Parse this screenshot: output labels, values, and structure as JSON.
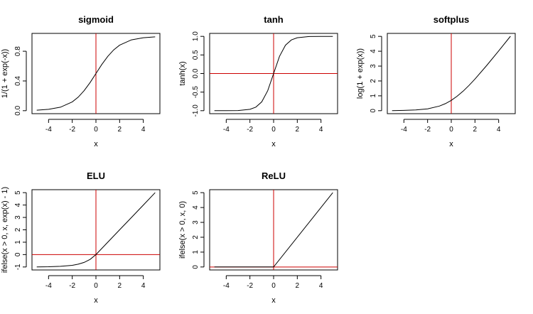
{
  "chart_data": [
    {
      "type": "line",
      "title": "sigmoid",
      "xlabel": "x",
      "ylabel": "1/(1 + exp(-x))",
      "xlim": [
        -5,
        5
      ],
      "ylim": [
        0,
        1
      ],
      "xticks": [
        -4,
        -2,
        0,
        2,
        4
      ],
      "yticks": [
        0.0,
        0.4,
        0.8
      ],
      "ytick_labels": [
        "0.0",
        "0.4",
        "0.8"
      ],
      "grid": false,
      "x": [
        -5,
        -4,
        -3,
        -2,
        -1.5,
        -1,
        -0.5,
        0,
        0.5,
        1,
        1.5,
        2,
        3,
        4,
        5
      ],
      "y": [
        0.007,
        0.018,
        0.047,
        0.119,
        0.182,
        0.269,
        0.378,
        0.5,
        0.622,
        0.731,
        0.818,
        0.881,
        0.953,
        0.982,
        0.993
      ],
      "reference_lines": [
        {
          "orientation": "vertical",
          "value": 0,
          "color": "#cc0000"
        }
      ]
    },
    {
      "type": "line",
      "title": "tanh",
      "xlabel": "x",
      "ylabel": "tanh(x)",
      "xlim": [
        -5,
        5
      ],
      "ylim": [
        -1,
        1
      ],
      "xticks": [
        -4,
        -2,
        0,
        2,
        4
      ],
      "yticks": [
        -1.0,
        -0.5,
        0.0,
        0.5,
        1.0
      ],
      "ytick_labels": [
        "-1.0",
        "-0.5",
        "0.0",
        "0.5",
        "1.0"
      ],
      "grid": false,
      "x": [
        -5,
        -4,
        -3,
        -2,
        -1.5,
        -1,
        -0.5,
        0,
        0.5,
        1,
        1.5,
        2,
        3,
        4,
        5
      ],
      "y": [
        -1.0,
        -0.999,
        -0.995,
        -0.964,
        -0.905,
        -0.762,
        -0.462,
        0,
        0.462,
        0.762,
        0.905,
        0.964,
        0.995,
        0.999,
        1.0
      ],
      "reference_lines": [
        {
          "orientation": "vertical",
          "value": 0,
          "color": "#cc0000"
        },
        {
          "orientation": "horizontal",
          "value": 0,
          "color": "#cc0000"
        }
      ]
    },
    {
      "type": "line",
      "title": "softplus",
      "xlabel": "x",
      "ylabel": "log(1 + exp(x))",
      "xlim": [
        -5,
        5
      ],
      "ylim": [
        0,
        5
      ],
      "xticks": [
        -4,
        -2,
        0,
        2,
        4
      ],
      "yticks": [
        0,
        1,
        2,
        3,
        4,
        5
      ],
      "ytick_labels": [
        "0",
        "1",
        "2",
        "3",
        "4",
        "5"
      ],
      "grid": false,
      "x": [
        -5,
        -4,
        -3,
        -2,
        -1,
        -0.5,
        0,
        0.5,
        1,
        1.5,
        2,
        3,
        4,
        5
      ],
      "y": [
        0.007,
        0.018,
        0.049,
        0.127,
        0.313,
        0.474,
        0.693,
        0.974,
        1.313,
        1.701,
        2.127,
        3.049,
        4.018,
        5.007
      ],
      "reference_lines": [
        {
          "orientation": "vertical",
          "value": 0,
          "color": "#cc0000"
        }
      ]
    },
    {
      "type": "line",
      "title": "ELU",
      "xlabel": "x",
      "ylabel": "ifelse(x > 0, x, exp(x) - 1)",
      "xlim": [
        -5,
        5
      ],
      "ylim": [
        -1,
        5
      ],
      "xticks": [
        -4,
        -2,
        0,
        2,
        4
      ],
      "yticks": [
        -1,
        0,
        1,
        2,
        3,
        4,
        5
      ],
      "ytick_labels": [
        "-1",
        "0",
        "1",
        "2",
        "3",
        "4",
        "5"
      ],
      "grid": false,
      "x": [
        -5,
        -4,
        -3,
        -2,
        -1.5,
        -1,
        -0.5,
        0,
        1,
        2,
        3,
        4,
        5
      ],
      "y": [
        -0.993,
        -0.982,
        -0.95,
        -0.865,
        -0.777,
        -0.632,
        -0.393,
        0,
        1,
        2,
        3,
        4,
        5
      ],
      "reference_lines": [
        {
          "orientation": "vertical",
          "value": 0,
          "color": "#cc0000"
        },
        {
          "orientation": "horizontal",
          "value": 0,
          "color": "#cc0000"
        }
      ]
    },
    {
      "type": "line",
      "title": "ReLU",
      "xlabel": "x",
      "ylabel": "ifelse(x > 0, x, 0)",
      "xlim": [
        -5,
        5
      ],
      "ylim": [
        0,
        5
      ],
      "xticks": [
        -4,
        -2,
        0,
        2,
        4
      ],
      "yticks": [
        0,
        1,
        2,
        3,
        4,
        5
      ],
      "ytick_labels": [
        "0",
        "1",
        "2",
        "3",
        "4",
        "5"
      ],
      "grid": false,
      "x": [
        -5,
        0,
        5
      ],
      "y": [
        0,
        0,
        5
      ],
      "reference_lines": [
        {
          "orientation": "vertical",
          "value": 0,
          "color": "#cc0000"
        },
        {
          "orientation": "horizontal",
          "value": 0,
          "color": "#cc0000"
        }
      ]
    }
  ]
}
